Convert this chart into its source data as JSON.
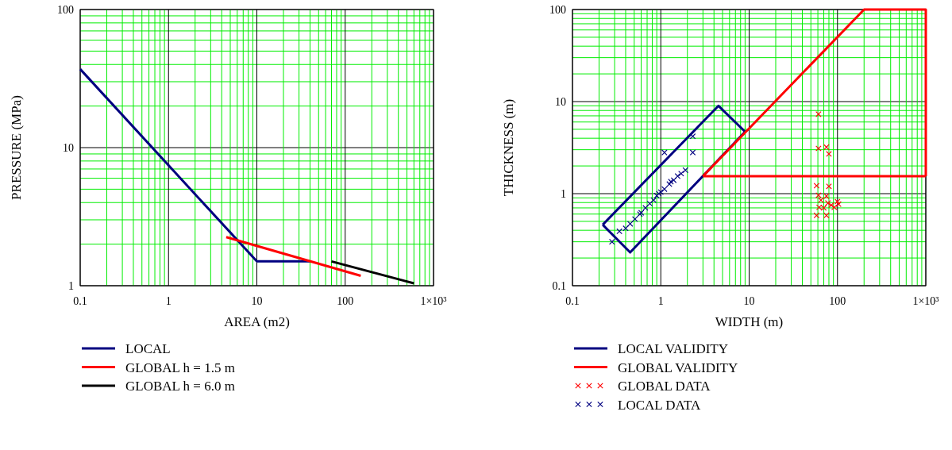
{
  "chart_data": [
    {
      "type": "line",
      "xlabel": "AREA (m2)",
      "ylabel": "PRESSURE (MPa)",
      "log": "xy",
      "grid": true,
      "legend": "bottom",
      "xlim": [
        0.1,
        1000
      ],
      "ylim": [
        1,
        100
      ],
      "xticks": [
        0.1,
        {
          "value": 0.2,
          "label": null
        },
        {
          "value": 0.3,
          "label": null
        },
        {
          "value": 0.4,
          "label": null
        },
        {
          "value": 0.5,
          "label": null
        },
        {
          "value": 0.6,
          "label": null
        },
        {
          "value": 0.7,
          "label": null
        },
        {
          "value": 0.8,
          "label": null
        },
        {
          "value": 0.9,
          "label": null
        },
        1,
        {
          "value": 2,
          "label": null
        },
        {
          "value": 3,
          "label": null
        },
        {
          "value": 4,
          "label": null
        },
        {
          "value": 5,
          "label": null
        },
        {
          "value": 6,
          "label": null
        },
        {
          "value": 7,
          "label": null
        },
        {
          "value": 8,
          "label": null
        },
        {
          "value": 9,
          "label": null
        },
        10,
        {
          "value": 20,
          "label": null
        },
        {
          "value": 30,
          "label": null
        },
        {
          "value": 40,
          "label": null
        },
        {
          "value": 50,
          "label": null
        },
        {
          "value": 60,
          "label": null
        },
        {
          "value": 70,
          "label": null
        },
        {
          "value": 80,
          "label": null
        },
        {
          "value": 90,
          "label": null
        },
        100,
        {
          "value": 200,
          "label": null
        },
        {
          "value": 300,
          "label": null
        },
        {
          "value": 400,
          "label": null
        },
        {
          "value": 500,
          "label": null
        },
        {
          "value": 600,
          "label": null
        },
        {
          "value": 700,
          "label": null
        },
        {
          "value": 800,
          "label": null
        },
        {
          "value": 900,
          "label": null
        },
        {
          "value": 1000,
          "label": "1×10³"
        }
      ],
      "yticks": [
        1,
        {
          "value": 2,
          "label": null
        },
        {
          "value": 3,
          "label": null
        },
        {
          "value": 4,
          "label": null
        },
        {
          "value": 5,
          "label": null
        },
        {
          "value": 6,
          "label": null
        },
        {
          "value": 7,
          "label": null
        },
        {
          "value": 8,
          "label": null
        },
        {
          "value": 9,
          "label": null
        },
        10,
        {
          "value": 20,
          "label": null
        },
        {
          "value": 30,
          "label": null
        },
        {
          "value": 40,
          "label": null
        },
        {
          "value": 50,
          "label": null
        },
        {
          "value": 60,
          "label": null
        },
        {
          "value": 70,
          "label": null
        },
        {
          "value": 80,
          "label": null
        },
        {
          "value": 90,
          "label": null
        },
        100
      ],
      "series": [
        {
          "name": "LOCAL",
          "color": "#000080",
          "x": [
            0.1,
            10,
            40
          ],
          "values": [
            37,
            1.5,
            1.5
          ]
        },
        {
          "name": "GLOBAL h = 1.5 m",
          "color": "#ff0000",
          "x": [
            4.5,
            150
          ],
          "values": [
            2.25,
            1.18
          ]
        },
        {
          "name": "GLOBAL h = 6.0 m",
          "color": "#000000",
          "x": [
            70,
            600
          ],
          "values": [
            1.5,
            1.04
          ]
        }
      ]
    },
    {
      "type": "line",
      "xlabel": "WIDTH (m)",
      "ylabel": "THICKNESS (m)",
      "log": "xy",
      "grid": true,
      "legend": "bottom",
      "xlim": [
        0.1,
        1000
      ],
      "ylim": [
        0.1,
        100
      ],
      "xticks": [
        0.1,
        {
          "value": 0.2,
          "label": null
        },
        {
          "value": 0.3,
          "label": null
        },
        {
          "value": 0.4,
          "label": null
        },
        {
          "value": 0.5,
          "label": null
        },
        {
          "value": 0.6,
          "label": null
        },
        {
          "value": 0.7,
          "label": null
        },
        {
          "value": 0.8,
          "label": null
        },
        {
          "value": 0.9,
          "label": null
        },
        1,
        {
          "value": 2,
          "label": null
        },
        {
          "value": 3,
          "label": null
        },
        {
          "value": 4,
          "label": null
        },
        {
          "value": 5,
          "label": null
        },
        {
          "value": 6,
          "label": null
        },
        {
          "value": 7,
          "label": null
        },
        {
          "value": 8,
          "label": null
        },
        {
          "value": 9,
          "label": null
        },
        10,
        {
          "value": 20,
          "label": null
        },
        {
          "value": 30,
          "label": null
        },
        {
          "value": 40,
          "label": null
        },
        {
          "value": 50,
          "label": null
        },
        {
          "value": 60,
          "label": null
        },
        {
          "value": 70,
          "label": null
        },
        {
          "value": 80,
          "label": null
        },
        {
          "value": 90,
          "label": null
        },
        100,
        {
          "value": 200,
          "label": null
        },
        {
          "value": 300,
          "label": null
        },
        {
          "value": 400,
          "label": null
        },
        {
          "value": 500,
          "label": null
        },
        {
          "value": 600,
          "label": null
        },
        {
          "value": 700,
          "label": null
        },
        {
          "value": 800,
          "label": null
        },
        {
          "value": 900,
          "label": null
        },
        {
          "value": 1000,
          "label": "1×10³"
        }
      ],
      "yticks": [
        0.1,
        {
          "value": 0.2,
          "label": null
        },
        {
          "value": 0.3,
          "label": null
        },
        {
          "value": 0.4,
          "label": null
        },
        {
          "value": 0.5,
          "label": null
        },
        {
          "value": 0.6,
          "label": null
        },
        {
          "value": 0.7,
          "label": null
        },
        {
          "value": 0.8,
          "label": null
        },
        {
          "value": 0.9,
          "label": null
        },
        1,
        {
          "value": 2,
          "label": null
        },
        {
          "value": 3,
          "label": null
        },
        {
          "value": 4,
          "label": null
        },
        {
          "value": 5,
          "label": null
        },
        {
          "value": 6,
          "label": null
        },
        {
          "value": 7,
          "label": null
        },
        {
          "value": 8,
          "label": null
        },
        {
          "value": 9,
          "label": null
        },
        10,
        {
          "value": 20,
          "label": null
        },
        {
          "value": 30,
          "label": null
        },
        {
          "value": 40,
          "label": null
        },
        {
          "value": 50,
          "label": null
        },
        {
          "value": 60,
          "label": null
        },
        {
          "value": 70,
          "label": null
        },
        {
          "value": 80,
          "label": null
        },
        {
          "value": 90,
          "label": null
        },
        100
      ],
      "series": [
        {
          "name": "LOCAL VALIDITY",
          "color": "#000080",
          "x": [
            0.22,
            4.5,
            9
          ],
          "values": [
            0.46,
            9,
            4.7
          ]
        },
        {
          "color": "#000080",
          "x": [
            0.22,
            0.45,
            9
          ],
          "values": [
            0.46,
            0.23,
            4.7
          ]
        },
        {
          "name": "GLOBAL VALIDITY",
          "color": "#ff0000",
          "x": [
            3,
            200,
            1000,
            1000
          ],
          "values": [
            1.55,
            100,
            100,
            1.55
          ]
        },
        {
          "color": "#ff0000",
          "x": [
            3,
            1000
          ],
          "values": [
            1.55,
            1.55
          ]
        },
        {
          "name": "GLOBAL DATA",
          "type": "scatter",
          "marker": "cross",
          "color": "#ff0000",
          "x": [
            61,
            61,
            75,
            80,
            58,
            80,
            61,
            75,
            78,
            100,
            103,
            62,
            58,
            75,
            70,
            92,
            65,
            85
          ],
          "values": [
            7.3,
            3.1,
            3.2,
            2.7,
            1.22,
            1.2,
            0.96,
            0.94,
            0.79,
            0.82,
            0.77,
            0.71,
            0.58,
            0.58,
            0.7,
            0.71,
            0.85,
            0.75
          ]
        },
        {
          "name": "LOCAL DATA",
          "type": "scatter",
          "marker": "cross",
          "color": "#000080",
          "x": [
            0.28,
            0.34,
            0.4,
            0.45,
            0.51,
            0.58,
            0.67,
            0.75,
            0.83,
            0.9,
            1.0,
            1.1,
            1.25,
            1.4,
            1.55,
            1.7,
            1.9,
            1.1,
            2.3,
            2.3,
            0.6,
            0.95,
            1.3
          ],
          "values": [
            0.3,
            0.39,
            0.42,
            0.47,
            0.53,
            0.6,
            0.7,
            0.78,
            0.85,
            0.95,
            1.04,
            1.12,
            1.27,
            1.4,
            1.55,
            1.65,
            1.8,
            2.8,
            2.8,
            4.2,
            0.62,
            1.0,
            1.35
          ]
        }
      ]
    }
  ]
}
